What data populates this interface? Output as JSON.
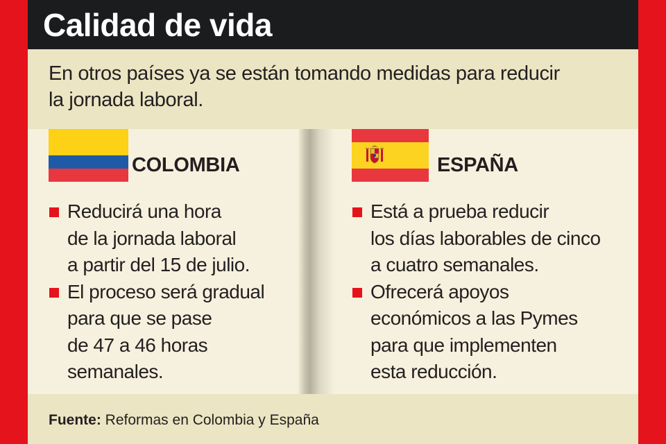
{
  "header": {
    "title": "Calidad de vida"
  },
  "intro": {
    "line1": "En otros países ya se están tomando medidas para reducir",
    "line2": "la jornada laboral."
  },
  "colombia": {
    "name": "COLOMBIA",
    "flag_colors": [
      "#fcd116",
      "#1f5aa6",
      "#e8373f"
    ],
    "bullets": [
      [
        "Reducirá una hora",
        "de la jornada laboral",
        "a partir del 15 de julio."
      ],
      [
        "El proceso será gradual",
        "para que se pase",
        "de 47 a 46 horas",
        "semanales."
      ]
    ]
  },
  "espana": {
    "name": "ESPAÑA",
    "flag_colors": [
      "#e8373f",
      "#fbd320",
      "#e8373f"
    ],
    "bullets": [
      [
        "Está a prueba reducir",
        "los días laborables de cinco",
        "a cuatro semanales."
      ],
      [
        "Ofrecerá apoyos",
        "económicos a las Pymes",
        "para que implementen",
        "esta reducción."
      ]
    ]
  },
  "footer": {
    "source_label": "Fuente:",
    "source_text": " Reformas en Colombia y España"
  },
  "colors": {
    "frame_red": "#e5131b",
    "title_bar": "#1b1c1e",
    "band_beige": "#ebe5c3",
    "panel_cream": "#f6f1de",
    "bullet_red": "#e5131b"
  }
}
